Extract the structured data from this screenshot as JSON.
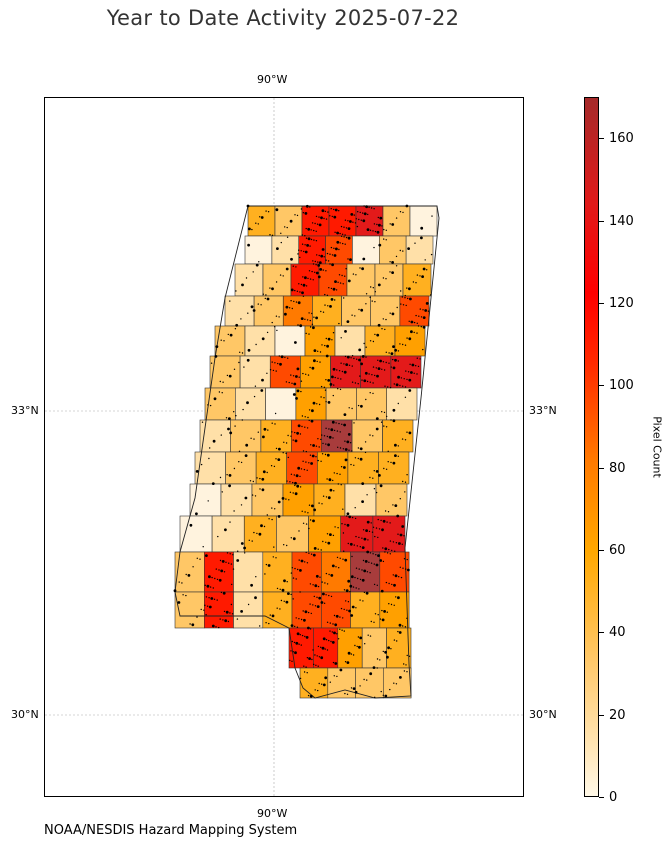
{
  "title": "Year to Date Activity 2025-07-22",
  "footer": "NOAA/NESDIS Hazard Mapping System",
  "graticule": {
    "lon_label": "90°W",
    "lat_labels": [
      "33°N",
      "30°N"
    ]
  },
  "colorbar": {
    "label": "Pixel Count",
    "ticks": [
      "0",
      "20",
      "40",
      "60",
      "80",
      "100",
      "120",
      "140",
      "160"
    ],
    "range": [
      0,
      170
    ],
    "colors": [
      "#fff8e7",
      "#ffc766",
      "#ffa800",
      "#ff7a00",
      "#ff2a00",
      "#e01a1a",
      "#a52a2a"
    ]
  },
  "map": {
    "region": "Mississippi",
    "feature": "counties shaded by fire pixel count, black dots are detections"
  }
}
